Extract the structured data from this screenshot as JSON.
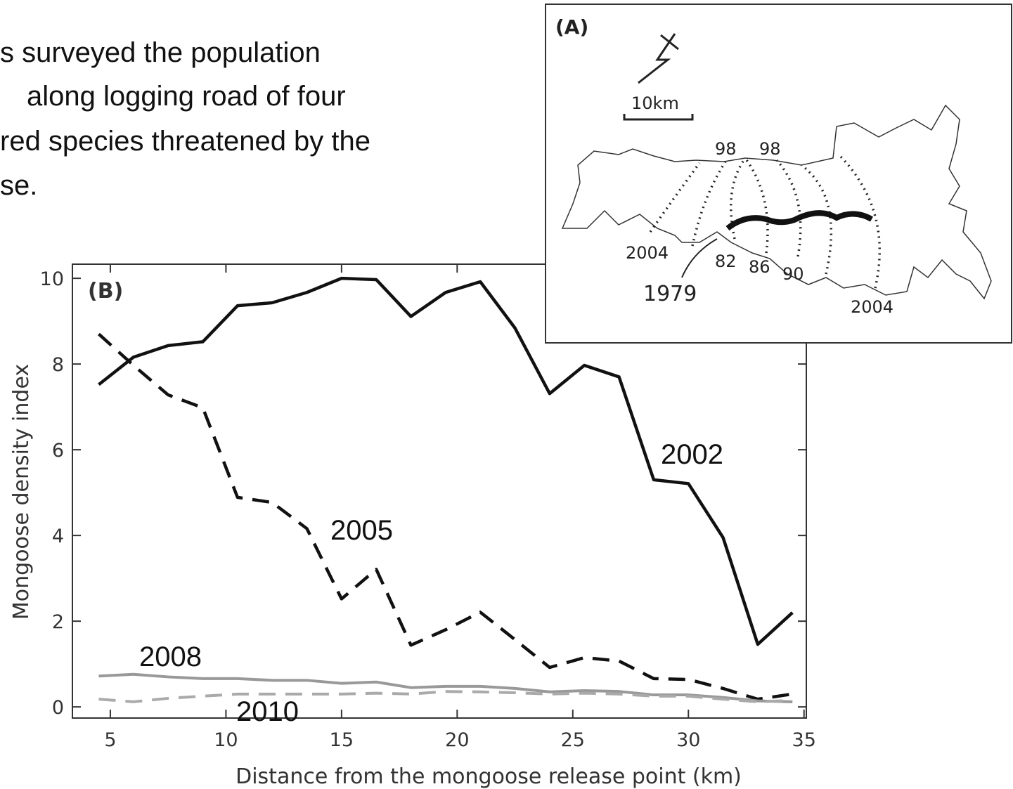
{
  "slide_text": [
    "s surveyed the population",
    "along logging road of four",
    "red species threatened by the",
    "se."
  ],
  "inset_map": {
    "panel_label": "(A)",
    "scale_label": "10km",
    "labels": [
      "98",
      "98",
      "2004",
      "82",
      "86",
      "90",
      "1979",
      "2004"
    ]
  },
  "chart_data": {
    "type": "line",
    "panel_label": "(B)",
    "x_label": "Distance from the mongoose release point (km)",
    "y_label": "Mongoose density index",
    "x": [
      4.5,
      6,
      7.5,
      9,
      10.5,
      12,
      13.5,
      15,
      16.5,
      18,
      19.5,
      21,
      22.5,
      24,
      25.5,
      27,
      28.5,
      30,
      31.5,
      33,
      34.5
    ],
    "series": [
      {
        "name": "2002",
        "color": "#111111",
        "linestyle": "solid",
        "values": [
          7.52,
          8.16,
          8.43,
          8.52,
          9.36,
          9.43,
          9.67,
          10.0,
          9.97,
          9.11,
          9.67,
          9.92,
          8.84,
          7.31,
          7.97,
          7.7,
          5.3,
          5.21,
          3.95,
          1.46,
          2.2
        ]
      },
      {
        "name": "2005",
        "color": "#111111",
        "linestyle": "dashed",
        "values": [
          8.7,
          7.97,
          7.28,
          6.98,
          4.89,
          4.77,
          4.16,
          2.52,
          3.21,
          1.44,
          1.8,
          2.21,
          1.57,
          0.92,
          1.15,
          1.07,
          0.66,
          0.64,
          0.43,
          0.18,
          0.3
        ]
      },
      {
        "name": "2008",
        "color": "#999999",
        "linestyle": "solid",
        "values": [
          0.72,
          0.76,
          0.7,
          0.66,
          0.66,
          0.62,
          0.62,
          0.55,
          0.58,
          0.45,
          0.48,
          0.48,
          0.43,
          0.35,
          0.38,
          0.36,
          0.28,
          0.28,
          0.22,
          0.14,
          0.12
        ]
      },
      {
        "name": "2010",
        "color": "#aaaaaa",
        "linestyle": "dashed",
        "values": [
          0.18,
          0.12,
          0.2,
          0.25,
          0.3,
          0.3,
          0.3,
          0.3,
          0.32,
          0.3,
          0.36,
          0.35,
          0.33,
          0.3,
          0.32,
          0.3,
          0.25,
          0.25,
          0.18,
          0.12,
          0.15
        ]
      }
    ],
    "xlim": [
      3.36,
      35.1
    ],
    "xticks": [
      5,
      10,
      15,
      20,
      25,
      30,
      35
    ],
    "ylim": [
      -0.26,
      10.33
    ],
    "yticks": [
      0,
      2,
      4,
      6,
      8,
      10
    ]
  }
}
